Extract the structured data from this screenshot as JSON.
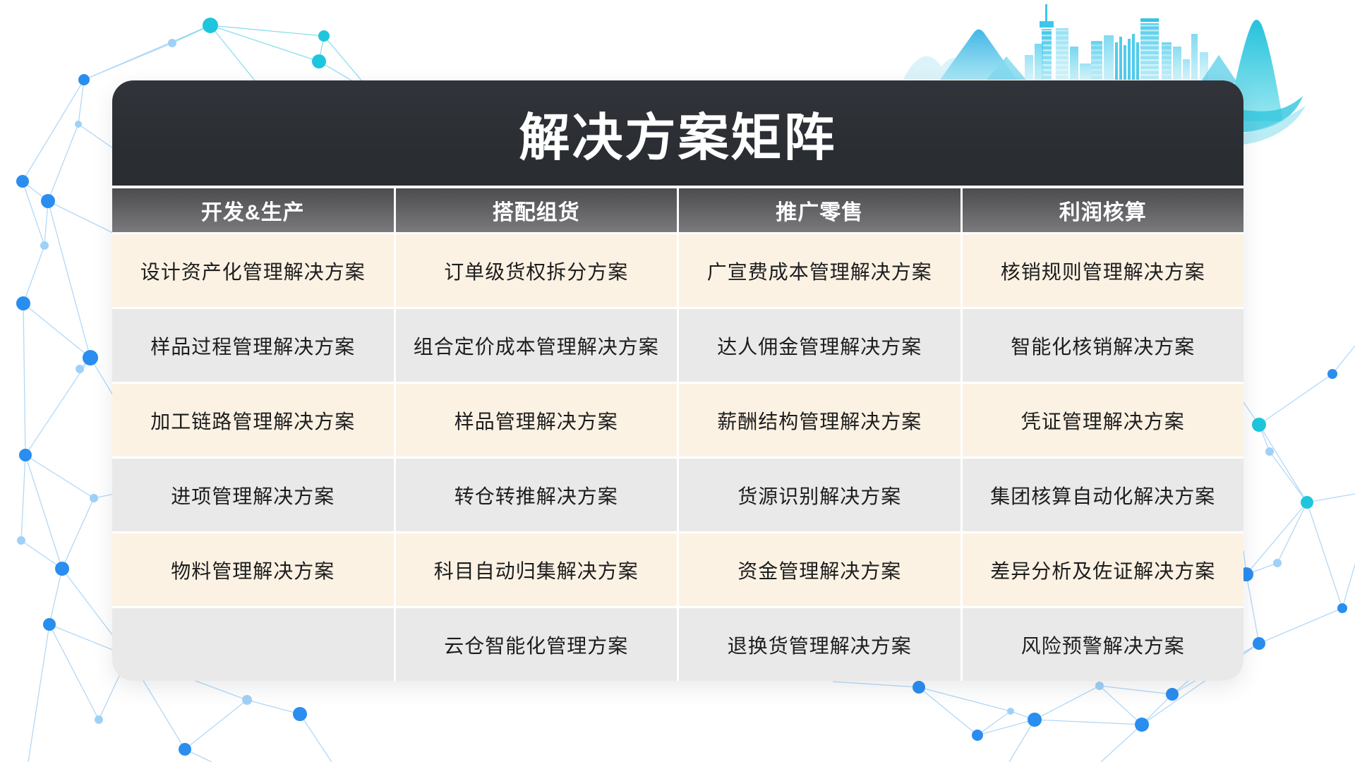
{
  "title": "解决方案矩阵",
  "table": {
    "columns": [
      {
        "header": "开发&生产",
        "cells": [
          "设计资产化管理解决方案",
          "样品过程管理解决方案",
          "加工链路管理解决方案",
          "进项管理解决方案",
          "物料管理解决方案",
          ""
        ]
      },
      {
        "header": "搭配组货",
        "cells": [
          "订单级货权拆分方案",
          "组合定价成本管理解决方案",
          "样品管理解决方案",
          "转仓转推解决方案",
          "科目自动归集解决方案",
          "云仓智能化管理方案"
        ]
      },
      {
        "header": "推广零售",
        "cells": [
          "广宣费成本管理解决方案",
          "达人佣金管理解决方案",
          "薪酬结构管理解决方案",
          "货源识别解决方案",
          "资金管理解决方案",
          "退换货管理解决方案"
        ]
      },
      {
        "header": "利润核算",
        "cells": [
          "核销规则管理解决方案",
          "智能化核销解决方案",
          "凭证管理解决方案",
          "集团核算自动化解决方案",
          "差异分析及佐证解决方案",
          "风险预警解决方案"
        ]
      }
    ]
  },
  "colors": {
    "panel-dark": "#2a2d32",
    "header-top": "#4c4c4f",
    "header-bottom": "#7a7a7d",
    "row-cream": "#fcf2e4",
    "row-gray": "#e9e9e9",
    "cell-text": "#1d1d1d",
    "accent-cyan": "#1ec6dd",
    "accent-blue": "#2a8df0",
    "accent-light-blue": "#9fd1f7"
  }
}
